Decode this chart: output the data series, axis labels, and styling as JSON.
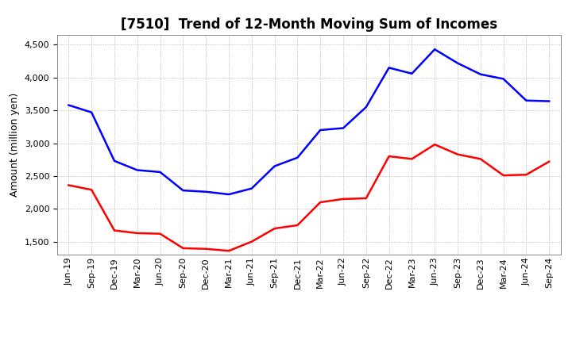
{
  "title": "[7510]  Trend of 12-Month Moving Sum of Incomes",
  "ylabel": "Amount (million yen)",
  "ylim": [
    1300,
    4650
  ],
  "yticks": [
    1500,
    2000,
    2500,
    3000,
    3500,
    4000,
    4500
  ],
  "background_color": "#ffffff",
  "plot_bg_color": "#ffffff",
  "grid_color": "#aaaaaa",
  "x_labels": [
    "Jun-19",
    "Sep-19",
    "Dec-19",
    "Mar-20",
    "Jun-20",
    "Sep-20",
    "Dec-20",
    "Mar-21",
    "Jun-21",
    "Sep-21",
    "Dec-21",
    "Mar-22",
    "Jun-22",
    "Sep-22",
    "Dec-22",
    "Mar-23",
    "Jun-23",
    "Sep-23",
    "Dec-23",
    "Mar-24",
    "Jun-24",
    "Sep-24"
  ],
  "ordinary_income": [
    3580,
    3470,
    2730,
    2590,
    2560,
    2280,
    2260,
    2220,
    2310,
    2650,
    2780,
    3200,
    3230,
    3550,
    4150,
    4060,
    4430,
    4220,
    4050,
    3980,
    3650,
    3640
  ],
  "net_income": [
    2360,
    2290,
    1670,
    1630,
    1620,
    1400,
    1390,
    1360,
    1500,
    1700,
    1750,
    2100,
    2150,
    2160,
    2800,
    2760,
    2980,
    2830,
    2760,
    2510,
    2520,
    2720
  ],
  "ordinary_color": "#0000ff",
  "net_color": "#ff0000",
  "line_width": 1.8,
  "title_fontsize": 12,
  "legend_fontsize": 9.5,
  "tick_fontsize": 8,
  "ylabel_fontsize": 9
}
